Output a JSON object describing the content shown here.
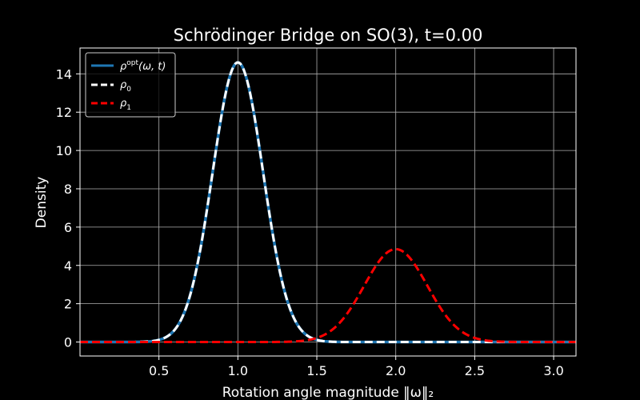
{
  "chart_data": {
    "type": "line",
    "title": "Schrödinger Bridge on SO(3), t=0.00",
    "xlabel": "Rotation angle magnitude ‖ω‖₂",
    "ylabel": "Density",
    "xlim": [
      0.0,
      3.14159
    ],
    "ylim": [
      -0.73,
      15.35
    ],
    "xticks": [
      0.5,
      1.0,
      1.5,
      2.0,
      2.5,
      3.0
    ],
    "xtick_labels": [
      "0.5",
      "1.0",
      "1.5",
      "2.0",
      "2.5",
      "3.0"
    ],
    "yticks": [
      0,
      2,
      4,
      6,
      8,
      10,
      12,
      14
    ],
    "ytick_labels": [
      "0",
      "2",
      "4",
      "6",
      "8",
      "10",
      "12",
      "14"
    ],
    "grid": true,
    "legend_position": "top-left",
    "background": "#000000",
    "series": [
      {
        "name": "ρ^opt(ω, t)",
        "legend_main": "ρ",
        "legend_sup": "opt",
        "legend_rest": "(ω, t)",
        "color": "#1f77b4",
        "style": "solid",
        "distribution": "gaussian",
        "mean": 1.0,
        "sd": 0.16,
        "peak": 14.6,
        "x": [
          0.0,
          0.4,
          0.6,
          0.8,
          0.9,
          1.0,
          1.1,
          1.2,
          1.4,
          1.6,
          2.0,
          3.14
        ],
        "values": [
          0.0,
          0.06,
          0.69,
          5.3,
          10.4,
          14.6,
          10.4,
          5.3,
          0.66,
          0.04,
          0.0,
          0.0
        ]
      },
      {
        "name": "ρ₀",
        "legend_main": "ρ",
        "legend_sub": "0",
        "color": "#ffffff",
        "style": "dashed",
        "distribution": "gaussian",
        "mean": 1.0,
        "sd": 0.16,
        "peak": 14.6,
        "x": [
          0.0,
          0.4,
          0.6,
          0.8,
          0.9,
          1.0,
          1.1,
          1.2,
          1.4,
          1.6,
          2.0,
          3.14
        ],
        "values": [
          0.0,
          0.06,
          0.69,
          5.3,
          10.4,
          14.6,
          10.4,
          5.3,
          0.66,
          0.04,
          0.0,
          0.0
        ]
      },
      {
        "name": "ρ₁",
        "legend_main": "ρ",
        "legend_sub": "1",
        "color": "#ff0000",
        "style": "dashed",
        "distribution": "gaussian",
        "mean": 2.0,
        "sd": 0.2,
        "peak": 4.85,
        "x": [
          0.0,
          1.4,
          1.6,
          1.8,
          1.9,
          2.0,
          2.1,
          2.2,
          2.4,
          2.6,
          3.14
        ],
        "values": [
          0.0,
          0.05,
          0.66,
          2.94,
          4.28,
          4.85,
          4.28,
          2.94,
          0.66,
          0.05,
          0.0
        ]
      }
    ]
  }
}
